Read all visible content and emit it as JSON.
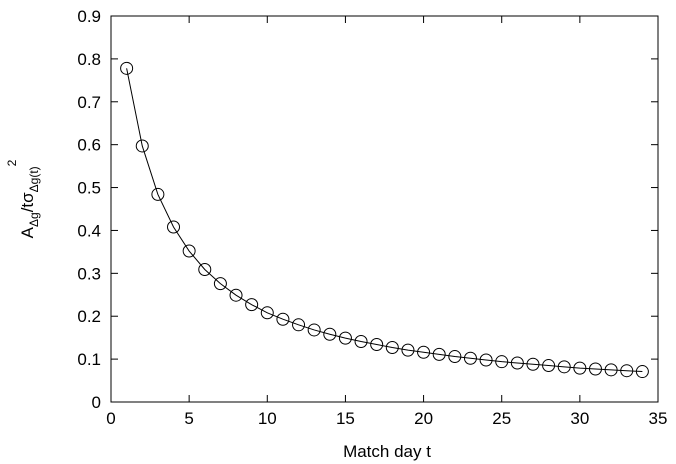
{
  "chart_data": {
    "type": "line",
    "xlabel": "Match day t",
    "ylabel": {
      "main": "A",
      "sub1": "Δg",
      "mid": "/tσ",
      "sub2": "Δg(t)",
      "sup": "2"
    },
    "xlim": [
      0,
      35
    ],
    "ylim": [
      0,
      0.9
    ],
    "xticks": [
      0,
      5,
      10,
      15,
      20,
      25,
      30,
      35
    ],
    "xtick_labels": [
      "0",
      "5",
      "10",
      "15",
      "20",
      "25",
      "30",
      "35"
    ],
    "yticks": [
      0,
      0.1,
      0.2,
      0.3,
      0.4,
      0.5,
      0.6,
      0.7,
      0.8,
      0.9
    ],
    "ytick_labels": [
      "0",
      "0.1",
      "0.2",
      "0.3",
      "0.4",
      "0.5",
      "0.6",
      "0.7",
      "0.8",
      "0.9"
    ],
    "grid": false,
    "series": [
      {
        "marker": "open-circle",
        "line": "solid",
        "color": "#000000",
        "x": [
          1,
          2,
          3,
          4,
          5,
          6,
          7,
          8,
          9,
          10,
          11,
          12,
          13,
          14,
          15,
          16,
          17,
          18,
          19,
          20,
          21,
          22,
          23,
          24,
          25,
          26,
          27,
          28,
          29,
          30,
          31,
          32,
          33,
          34
        ],
        "y": [
          0.778,
          0.597,
          0.484,
          0.408,
          0.352,
          0.309,
          0.276,
          0.249,
          0.227,
          0.208,
          0.193,
          0.18,
          0.168,
          0.158,
          0.149,
          0.141,
          0.134,
          0.127,
          0.121,
          0.116,
          0.111,
          0.106,
          0.102,
          0.098,
          0.094,
          0.091,
          0.088,
          0.085,
          0.082,
          0.079,
          0.077,
          0.075,
          0.073,
          0.071
        ]
      }
    ]
  }
}
